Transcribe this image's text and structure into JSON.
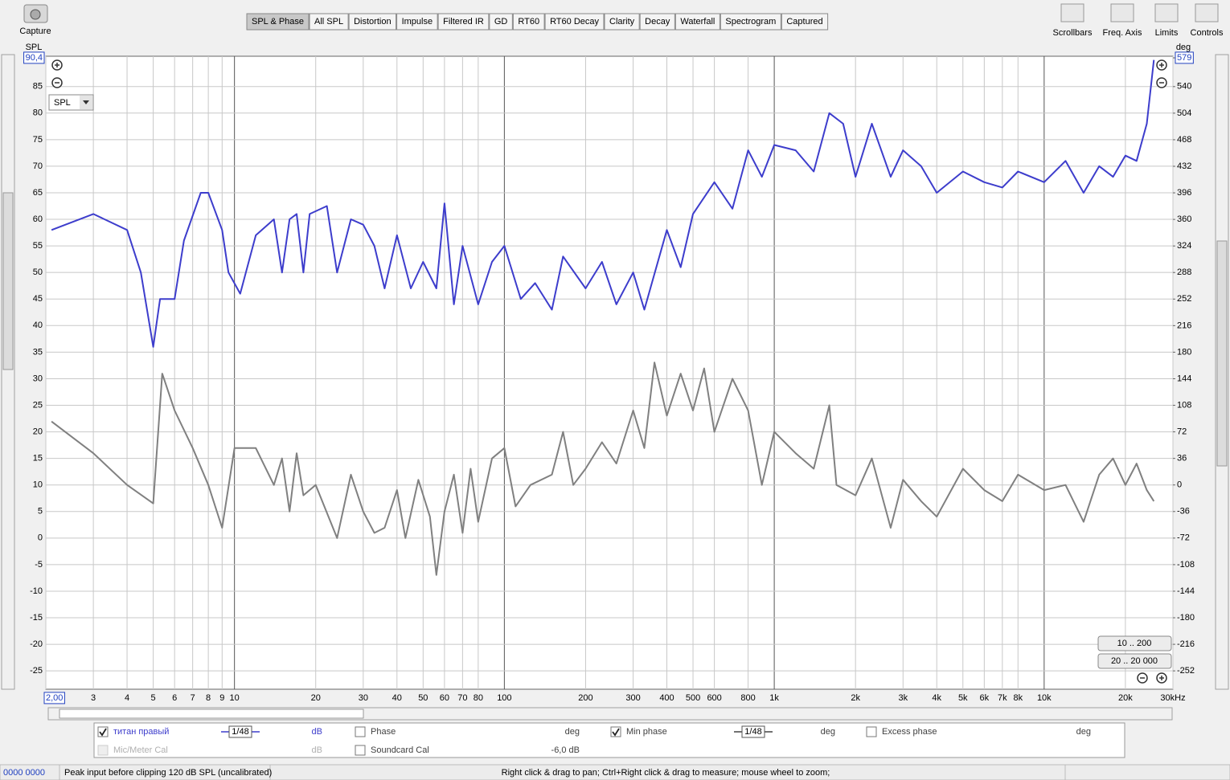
{
  "toolbar": {
    "capture": "Capture",
    "tabs": [
      "SPL & Phase",
      "All SPL",
      "Distortion",
      "Impulse",
      "Filtered IR",
      "GD",
      "RT60",
      "RT60 Decay",
      "Clarity",
      "Decay",
      "Waterfall",
      "Spectrogram",
      "Captured"
    ],
    "tools": [
      "Scrollbars",
      "Freq. Axis",
      "Limits",
      "Controls"
    ]
  },
  "chart_data": {
    "type": "line",
    "log_x": true,
    "grid": true,
    "ylabel": "SPL",
    "y2label": "deg",
    "xlim": [
      2,
      30000
    ],
    "xticks": [
      {
        "value": 2,
        "label": "2,00"
      },
      3,
      4,
      5,
      6,
      7,
      8,
      9,
      10,
      20,
      30,
      40,
      50,
      60,
      70,
      80,
      100,
      200,
      300,
      400,
      500,
      600,
      800,
      {
        "value": 1000,
        "label": "1k"
      },
      {
        "value": 2000,
        "label": "2k"
      },
      {
        "value": 3000,
        "label": "3k"
      },
      {
        "value": 4000,
        "label": "4k"
      },
      {
        "value": 5000,
        "label": "5k"
      },
      {
        "value": 6000,
        "label": "6k"
      },
      {
        "value": 7000,
        "label": "7k"
      },
      {
        "value": 8000,
        "label": "8k"
      },
      {
        "value": 10000,
        "label": "10k"
      },
      {
        "value": 20000,
        "label": "20k"
      },
      {
        "value": 30000,
        "label": "30kHz"
      }
    ],
    "ylim": [
      -28.3,
      90.4
    ],
    "yticks": [
      {
        "value": 90.4,
        "label": "90,4"
      },
      85,
      80,
      75,
      70,
      65,
      60,
      55,
      50,
      45,
      40,
      35,
      30,
      25,
      20,
      15,
      10,
      5,
      0,
      -5,
      -10,
      -15,
      -20,
      -25
    ],
    "y2lim": [
      -275.8,
      579
    ],
    "y2ticks": [
      579,
      540,
      504,
      468,
      432,
      396,
      360,
      324,
      288,
      252,
      216,
      180,
      144,
      108,
      72,
      36,
      0,
      -36,
      -72,
      -108,
      -144,
      -180,
      -216,
      -252
    ],
    "series": [
      {
        "name": "титан правый",
        "color": "#3d3dcc",
        "checked": true,
        "smoothing": "1/48",
        "unit": "dB",
        "x": [
          2.1,
          3,
          4,
          4.5,
          5,
          5.3,
          6,
          6.5,
          7.5,
          8,
          9,
          9.5,
          10.5,
          12,
          14,
          15,
          16,
          17,
          18,
          19,
          22,
          24,
          27,
          30,
          33,
          36,
          40,
          45,
          50,
          56,
          60,
          65,
          70,
          80,
          90,
          100,
          115,
          130,
          150,
          165,
          200,
          230,
          260,
          300,
          330,
          400,
          450,
          500,
          600,
          700,
          800,
          900,
          1000,
          1200,
          1400,
          1600,
          1800,
          2000,
          2300,
          2700,
          3000,
          3500,
          4000,
          5000,
          6000,
          7000,
          8000,
          10000,
          12000,
          14000,
          16000,
          18000,
          20000,
          22000,
          24000,
          25500
        ],
        "values": [
          58,
          61,
          58,
          50,
          36,
          45,
          45,
          56,
          65,
          65,
          58,
          50,
          46,
          57,
          60,
          50,
          60,
          61,
          50,
          61,
          62.5,
          50,
          60,
          59,
          55,
          47,
          57,
          47,
          52,
          47,
          63,
          44,
          55,
          44,
          52,
          55,
          45,
          48,
          43,
          53,
          47,
          52,
          44,
          50,
          43,
          58,
          51,
          61,
          67,
          62,
          73,
          68,
          74,
          73,
          69,
          80,
          78,
          68,
          78,
          68,
          73,
          70,
          65,
          69,
          67,
          66,
          69,
          67,
          71,
          65,
          70,
          68,
          72,
          71,
          78,
          90
        ]
      },
      {
        "name": "Min phase",
        "color": "#808080",
        "axis": "y2",
        "checked": true,
        "smoothing": "1/48",
        "unit": "deg",
        "x": [
          2.1,
          3,
          4,
          5,
          5.4,
          6,
          7,
          8,
          9,
          10,
          12,
          14,
          15,
          16,
          17,
          18,
          20,
          24,
          27,
          30,
          33,
          36,
          40,
          43,
          48,
          53,
          56,
          60,
          65,
          70,
          75,
          80,
          90,
          100,
          110,
          125,
          150,
          165,
          180,
          200,
          230,
          260,
          300,
          330,
          360,
          400,
          450,
          500,
          550,
          600,
          700,
          800,
          900,
          1000,
          1200,
          1400,
          1600,
          1700,
          2000,
          2300,
          2700,
          3000,
          3500,
          4000,
          5000,
          6000,
          7000,
          8000,
          10000,
          12000,
          14000,
          16000,
          18000,
          20000,
          22000,
          24000,
          25500
        ],
        "values": [
          86,
          43,
          0,
          -25,
          151,
          101,
          50,
          0,
          -58,
          50,
          50,
          0,
          36,
          -36,
          43,
          -14,
          0,
          -72,
          14,
          -36,
          -65,
          -58,
          -7,
          -72,
          7,
          -43,
          -122,
          -36,
          14,
          -65,
          22,
          -50,
          36,
          50,
          -29,
          0,
          14,
          72,
          0,
          22,
          58,
          29,
          101,
          50,
          166,
          94,
          151,
          101,
          158,
          72,
          144,
          101,
          0,
          72,
          43,
          22,
          108,
          0,
          -14,
          36,
          -58,
          7,
          -22,
          -43,
          22,
          -7,
          -22,
          14,
          -7,
          0,
          -50,
          14,
          36,
          0,
          29,
          -7,
          -22
        ]
      }
    ]
  },
  "plot_controls": {
    "dropdown": "SPL",
    "range_buttons": [
      "10 .. 200",
      "20 .. 20 000"
    ]
  },
  "legend": {
    "items": [
      {
        "label": "Phase",
        "checked": false,
        "unit": "deg"
      },
      {
        "label": "Excess phase",
        "checked": false,
        "unit": "deg"
      },
      {
        "label": "Mic/Meter Cal",
        "checked": false,
        "disabled": true,
        "unit": "dB"
      },
      {
        "label": "Soundcard Cal",
        "checked": false,
        "unit": "-6,0 dB"
      }
    ]
  },
  "status_bar": {
    "counter": "0000 0000",
    "peak": "Peak input before clipping 120 dB SPL (uncalibrated)",
    "hint": "Right click & drag to pan; Ctrl+Right click & drag to measure; mouse wheel to zoom;"
  }
}
